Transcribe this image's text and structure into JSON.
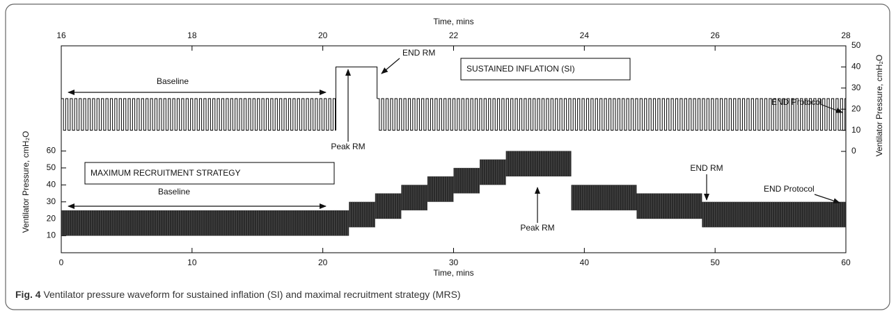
{
  "chart_data": [
    {
      "type": "band",
      "x_label": "Time, mins",
      "y_label": "Ventilator Pressure, cmH₂O",
      "xlim": [
        16,
        28
      ],
      "xticks": [
        16,
        18,
        20,
        22,
        24,
        26,
        28
      ],
      "ylim": [
        -48,
        50
      ],
      "yticks": [
        0,
        10,
        20,
        30,
        40,
        50
      ],
      "color": "#000000",
      "segments": [
        {
          "start": 16,
          "end": 20.2,
          "low": 10,
          "high": 25
        },
        {
          "start": 20.2,
          "end": 20.83,
          "low": 40,
          "high": 40
        },
        {
          "start": 20.83,
          "end": 28,
          "low": 10,
          "high": 25
        }
      ],
      "annotations": {
        "box": "SUSTAINED INFLATION (SI)",
        "baseline": "Baseline",
        "end_rm": "END RM",
        "peak_rm": "Peak RM",
        "end_protocol": "END Protocol"
      }
    },
    {
      "type": "band",
      "x_label": "Time, mins",
      "y_label": "Ventilator Pressure, cmH₂O",
      "xlim": [
        0,
        60
      ],
      "xticks": [
        0,
        10,
        20,
        30,
        40,
        50,
        60
      ],
      "ylim": [
        0,
        122
      ],
      "yticks": [
        10,
        20,
        30,
        40,
        50,
        60
      ],
      "color": "#2a2a2a",
      "segments": [
        {
          "start": 0,
          "end": 22,
          "low": 10,
          "high": 25
        },
        {
          "start": 22,
          "end": 24,
          "low": 15,
          "high": 30
        },
        {
          "start": 24,
          "end": 26,
          "low": 20,
          "high": 35
        },
        {
          "start": 26,
          "end": 28,
          "low": 25,
          "high": 40
        },
        {
          "start": 28,
          "end": 30,
          "low": 30,
          "high": 45
        },
        {
          "start": 30,
          "end": 32,
          "low": 35,
          "high": 50
        },
        {
          "start": 32,
          "end": 34,
          "low": 40,
          "high": 55
        },
        {
          "start": 34,
          "end": 39,
          "low": 45,
          "high": 60
        },
        {
          "start": 39,
          "end": 44,
          "low": 25,
          "high": 40
        },
        {
          "start": 44,
          "end": 49,
          "low": 20,
          "high": 35
        },
        {
          "start": 49,
          "end": 60,
          "low": 15,
          "high": 30
        }
      ],
      "annotations": {
        "box": "MAXIMUM RECRUITMENT STRATEGY",
        "baseline": "Baseline",
        "end_rm": "END RM",
        "peak_rm": "Peak RM",
        "end_protocol": "END Protocol"
      }
    }
  ],
  "caption": {
    "label": "Fig. 4",
    "text": "Ventilator pressure waveform for sustained inflation (SI) and maximal recruitment strategy (MRS)"
  }
}
